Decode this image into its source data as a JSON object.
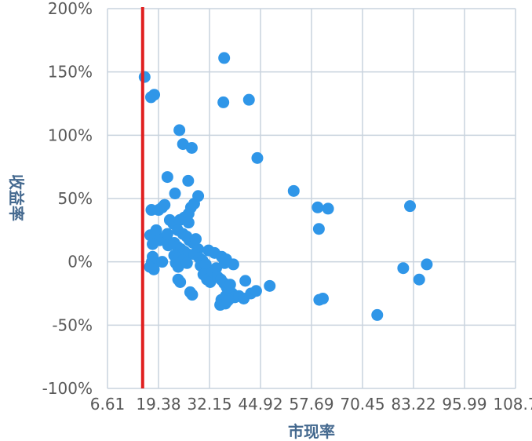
{
  "chart_data": {
    "type": "scatter",
    "xlabel": "市现率",
    "ylabel": "收益率",
    "xlim": [
      6.61,
      108.7
    ],
    "ylim": [
      -100,
      200
    ],
    "x_ticks": [
      "6.61",
      "19.38",
      "32.15",
      "44.92",
      "57.69",
      "70.45",
      "83.22",
      "95.99",
      "108.7"
    ],
    "y_ticks": [
      "200%",
      "150%",
      "100%",
      "50%",
      "0%",
      "-50%",
      "-100%"
    ],
    "y_tick_values": [
      200,
      150,
      100,
      50,
      0,
      -50,
      -100
    ],
    "grid": true,
    "legend": "none",
    "reference_line_x": 15.4,
    "marker_color": "#2f96e8",
    "reference_line_color": "#e02020",
    "grid_color": "#c9d3de",
    "points": [
      [
        15.9,
        146
      ],
      [
        17.5,
        130
      ],
      [
        18.3,
        132
      ],
      [
        17.6,
        41
      ],
      [
        19.4,
        41
      ],
      [
        20.3,
        43
      ],
      [
        20.9,
        45
      ],
      [
        17.3,
        21
      ],
      [
        18.5,
        20
      ],
      [
        18.8,
        25
      ],
      [
        19.7,
        17
      ],
      [
        20.9,
        19
      ],
      [
        21.6,
        22
      ],
      [
        21.8,
        13
      ],
      [
        17.9,
        14
      ],
      [
        17.9,
        4
      ],
      [
        17.7,
        0
      ],
      [
        18.2,
        -1
      ],
      [
        17.2,
        -4
      ],
      [
        18.2,
        -6
      ],
      [
        20.3,
        0
      ],
      [
        21.6,
        67
      ],
      [
        24.6,
        104
      ],
      [
        25.5,
        93
      ],
      [
        27.7,
        90
      ],
      [
        26.8,
        64
      ],
      [
        23.5,
        54
      ],
      [
        22.2,
        33
      ],
      [
        23.1,
        30
      ],
      [
        24.7,
        33
      ],
      [
        25.8,
        35
      ],
      [
        26.9,
        38
      ],
      [
        27.5,
        43
      ],
      [
        28.3,
        46
      ],
      [
        29.3,
        52
      ],
      [
        26.9,
        31
      ],
      [
        24.2,
        25
      ],
      [
        25.5,
        22
      ],
      [
        26.4,
        20
      ],
      [
        27.1,
        17
      ],
      [
        23.3,
        15
      ],
      [
        24.1,
        12
      ],
      [
        25.0,
        10
      ],
      [
        25.9,
        8
      ],
      [
        26.7,
        6
      ],
      [
        23.3,
        5
      ],
      [
        24.5,
        3
      ],
      [
        25.4,
        1
      ],
      [
        23.7,
        -1
      ],
      [
        24.3,
        -4
      ],
      [
        26.5,
        -1
      ],
      [
        24.3,
        -14
      ],
      [
        24.8,
        -16
      ],
      [
        27.3,
        -24
      ],
      [
        27.8,
        -26
      ],
      [
        28.0,
        15
      ],
      [
        28.7,
        18
      ],
      [
        29.3,
        10
      ],
      [
        28.3,
        6
      ],
      [
        29.6,
        3
      ],
      [
        30.4,
        1
      ],
      [
        29.9,
        -3
      ],
      [
        31.2,
        -2
      ],
      [
        30.6,
        -10
      ],
      [
        31.5,
        -14
      ],
      [
        32.3,
        -16
      ],
      [
        32.9,
        -8
      ],
      [
        33.8,
        -5
      ],
      [
        31.9,
        9
      ],
      [
        33.4,
        7
      ],
      [
        35.2,
        4
      ],
      [
        35.9,
        -1
      ],
      [
        36.3,
        2
      ],
      [
        34.2,
        -12
      ],
      [
        35.0,
        -14
      ],
      [
        35.8,
        -17
      ],
      [
        36.4,
        -20
      ],
      [
        37.1,
        -22
      ],
      [
        37.8,
        -25
      ],
      [
        38.5,
        -28
      ],
      [
        36.2,
        -27
      ],
      [
        36.9,
        -30
      ],
      [
        35.1,
        -30
      ],
      [
        36.1,
        -33
      ],
      [
        34.8,
        -34
      ],
      [
        36.6,
        -31
      ],
      [
        37.3,
        -18
      ],
      [
        38.1,
        -2
      ],
      [
        39.5,
        -27
      ],
      [
        40.7,
        -29
      ],
      [
        42.5,
        -25
      ],
      [
        41.1,
        -15
      ],
      [
        43.8,
        -23
      ],
      [
        35.8,
        161
      ],
      [
        35.6,
        126
      ],
      [
        42.0,
        128
      ],
      [
        44.1,
        82
      ],
      [
        47.2,
        -19
      ],
      [
        53.2,
        56
      ],
      [
        59.2,
        43
      ],
      [
        59.5,
        26
      ],
      [
        61.8,
        42
      ],
      [
        59.6,
        -30
      ],
      [
        60.5,
        -29
      ],
      [
        74.1,
        -42
      ],
      [
        80.6,
        -5
      ],
      [
        82.3,
        44
      ],
      [
        84.6,
        -14
      ],
      [
        86.5,
        -2
      ]
    ]
  }
}
